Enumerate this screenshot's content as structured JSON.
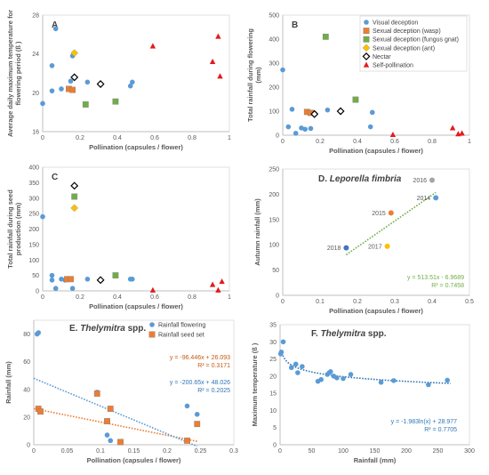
{
  "colors": {
    "visual": "#5b9bd5",
    "wasp": "#ed7d31",
    "fungus": "#70ad47",
    "ant": "#ffc000",
    "nectar": "#000000",
    "self": "#e31a1c",
    "rain_flowering": "#5b9bd5",
    "rain_seed": "#ed7d31",
    "trend_D": "#70ad47",
    "trend_F": "#2e75b6"
  },
  "series_keys": [
    "visual",
    "wasp",
    "fungus",
    "ant",
    "nectar",
    "self"
  ],
  "legend_B": [
    {
      "key": "visual",
      "label": "Visual deception",
      "marker": "circle"
    },
    {
      "key": "wasp",
      "label": "Sexual deception (wasp)",
      "marker": "square"
    },
    {
      "key": "fungus",
      "label": "Sexual deception (fungus gnat)",
      "marker": "square"
    },
    {
      "key": "ant",
      "label": "Sexual deception (ant)",
      "marker": "diamond"
    },
    {
      "key": "nectar",
      "label": "Nectar",
      "marker": "diamond-open"
    },
    {
      "key": "self",
      "label": "Self-pollination",
      "marker": "triangle"
    }
  ],
  "chart_data": [
    {
      "id": "A",
      "type": "scatter",
      "title": "A",
      "xlabel": "Pollination (capsules / flower)",
      "ylabel": "Average daily maximum temperature for flowering period (ß )",
      "xlim": [
        0,
        1
      ],
      "ylim": [
        16,
        28
      ],
      "xticks": [
        {
          "v": 0,
          "t": "0"
        },
        {
          "v": 0.2,
          "t": "0.2"
        },
        {
          "v": 0.4,
          "t": "0.4"
        },
        {
          "v": 0.6,
          "t": "0.6"
        },
        {
          "v": 0.8,
          "t": "0.8"
        },
        {
          "v": 1,
          "t": "1"
        }
      ],
      "yticks": [
        {
          "v": 16,
          "t": "16"
        },
        {
          "v": 20,
          "t": "20"
        },
        {
          "v": 24,
          "t": "24"
        },
        {
          "v": 28,
          "t": "28"
        }
      ],
      "series": [
        {
          "key": "visual",
          "points": [
            [
              0.0,
              18.9
            ],
            [
              0.05,
              22.8
            ],
            [
              0.05,
              20.2
            ],
            [
              0.07,
              26.6
            ],
            [
              0.1,
              20.4
            ],
            [
              0.15,
              21.2
            ],
            [
              0.16,
              23.8
            ],
            [
              0.24,
              21.1
            ],
            [
              0.47,
              20.7
            ],
            [
              0.48,
              21.1
            ]
          ]
        },
        {
          "key": "wasp",
          "points": [
            [
              0.14,
              20.4
            ],
            [
              0.16,
              20.3
            ]
          ]
        },
        {
          "key": "fungus",
          "points": [
            [
              0.23,
              18.8
            ],
            [
              0.39,
              19.1
            ]
          ]
        },
        {
          "key": "ant",
          "points": [
            [
              0.17,
              24.1
            ]
          ]
        },
        {
          "key": "nectar",
          "points": [
            [
              0.17,
              21.6
            ],
            [
              0.31,
              20.9
            ]
          ]
        },
        {
          "key": "self",
          "points": [
            [
              0.59,
              24.8
            ],
            [
              0.91,
              23.2
            ],
            [
              0.94,
              25.8
            ],
            [
              0.95,
              21.7
            ]
          ]
        }
      ]
    },
    {
      "id": "B",
      "type": "scatter",
      "title": "B",
      "xlabel": "Pollination (capsules / flower)",
      "ylabel": "Total rainfall during flowering (mm)",
      "xlim": [
        0,
        1
      ],
      "ylim": [
        0,
        500
      ],
      "xticks": [
        {
          "v": 0,
          "t": "0"
        },
        {
          "v": 0.2,
          "t": "0.2"
        },
        {
          "v": 0.4,
          "t": "0.4"
        },
        {
          "v": 0.6,
          "t": "0.6"
        },
        {
          "v": 0.8,
          "t": "0.8"
        },
        {
          "v": 1,
          "t": "1"
        }
      ],
      "yticks": [
        {
          "v": 0,
          "t": "0"
        },
        {
          "v": 100,
          "t": "100"
        },
        {
          "v": 200,
          "t": "200"
        },
        {
          "v": 300,
          "t": "300"
        },
        {
          "v": 400,
          "t": "400"
        },
        {
          "v": 500,
          "t": "500"
        }
      ],
      "series": [
        {
          "key": "visual",
          "points": [
            [
              0.0,
              272
            ],
            [
              0.03,
              35
            ],
            [
              0.05,
              108
            ],
            [
              0.07,
              8
            ],
            [
              0.1,
              30
            ],
            [
              0.12,
              25
            ],
            [
              0.15,
              28
            ],
            [
              0.16,
              95
            ],
            [
              0.24,
              105
            ],
            [
              0.47,
              35
            ],
            [
              0.48,
              95
            ]
          ]
        },
        {
          "key": "wasp",
          "points": [
            [
              0.13,
              97
            ],
            [
              0.15,
              93
            ]
          ]
        },
        {
          "key": "fungus",
          "points": [
            [
              0.23,
              410
            ],
            [
              0.39,
              148
            ]
          ]
        },
        {
          "key": "ant",
          "points": [
            [
              0.17,
              90
            ]
          ]
        },
        {
          "key": "nectar",
          "points": [
            [
              0.17,
              88
            ],
            [
              0.31,
              100
            ]
          ]
        },
        {
          "key": "self",
          "points": [
            [
              0.59,
              2
            ],
            [
              0.91,
              30
            ],
            [
              0.94,
              5
            ],
            [
              0.96,
              8
            ]
          ]
        }
      ]
    },
    {
      "id": "C",
      "type": "scatter",
      "title": "C",
      "xlabel": "Pollination (capsules / flower)",
      "ylabel": "Total rainfall during seed production (mm)",
      "xlim": [
        0,
        1
      ],
      "ylim": [
        0,
        400
      ],
      "xticks": [
        {
          "v": 0,
          "t": "0"
        },
        {
          "v": 0.2,
          "t": "0.2"
        },
        {
          "v": 0.4,
          "t": "0.4"
        },
        {
          "v": 0.6,
          "t": "0.6"
        },
        {
          "v": 0.8,
          "t": "0.8"
        },
        {
          "v": 1,
          "t": "1"
        }
      ],
      "yticks": [
        {
          "v": 0,
          "t": "0"
        },
        {
          "v": 50,
          "t": "50"
        },
        {
          "v": 100,
          "t": "100"
        },
        {
          "v": 150,
          "t": "150"
        },
        {
          "v": 200,
          "t": "200"
        },
        {
          "v": 250,
          "t": "250"
        },
        {
          "v": 300,
          "t": "300"
        },
        {
          "v": 350,
          "t": "350"
        },
        {
          "v": 400,
          "t": "400"
        }
      ],
      "series": [
        {
          "key": "visual",
          "points": [
            [
              0.0,
              240
            ],
            [
              0.05,
              35
            ],
            [
              0.05,
              50
            ],
            [
              0.07,
              8
            ],
            [
              0.1,
              38
            ],
            [
              0.12,
              35
            ],
            [
              0.16,
              8
            ],
            [
              0.24,
              38
            ],
            [
              0.47,
              38
            ],
            [
              0.48,
              38
            ]
          ]
        },
        {
          "key": "wasp",
          "points": [
            [
              0.13,
              38
            ],
            [
              0.15,
              38
            ]
          ]
        },
        {
          "key": "fungus",
          "points": [
            [
              0.17,
              305
            ],
            [
              0.39,
              50
            ]
          ]
        },
        {
          "key": "ant",
          "points": [
            [
              0.17,
              268
            ]
          ]
        },
        {
          "key": "nectar",
          "points": [
            [
              0.17,
              340
            ],
            [
              0.31,
              35
            ]
          ]
        },
        {
          "key": "self",
          "points": [
            [
              0.59,
              2
            ],
            [
              0.91,
              20
            ],
            [
              0.94,
              2
            ],
            [
              0.96,
              30
            ]
          ]
        }
      ]
    },
    {
      "id": "D",
      "type": "scatter",
      "title": "D. Leporella fimbria",
      "title_plain": "D.",
      "title_italic": "Leporella fimbria",
      "xlabel": "Pollination (capsules / flower)",
      "ylabel": "Autumn rainfall (mm)",
      "xlim": [
        0,
        0.5
      ],
      "ylim": [
        0,
        250
      ],
      "xticks": [
        {
          "v": 0,
          "t": "0"
        },
        {
          "v": 0.1,
          "t": "0.1"
        },
        {
          "v": 0.2,
          "t": "0.2"
        },
        {
          "v": 0.3,
          "t": "0.3"
        },
        {
          "v": 0.4,
          "t": "0.4"
        },
        {
          "v": 0.5,
          "t": "0.5"
        }
      ],
      "yticks": [
        {
          "v": 0,
          "t": "0"
        },
        {
          "v": 50,
          "t": "50"
        },
        {
          "v": 100,
          "t": "100"
        },
        {
          "v": 150,
          "t": "150"
        },
        {
          "v": 200,
          "t": "200"
        },
        {
          "v": 250,
          "t": "250"
        }
      ],
      "points": [
        {
          "x": 0.17,
          "y": 94,
          "label": "2018",
          "color": "#4472c4"
        },
        {
          "x": 0.28,
          "y": 97,
          "label": "2017",
          "color": "#ffc000"
        },
        {
          "x": 0.29,
          "y": 163,
          "label": "2015",
          "color": "#ed7d31"
        },
        {
          "x": 0.41,
          "y": 193,
          "label": "2014",
          "color": "#5b9bd5"
        },
        {
          "x": 0.4,
          "y": 228,
          "label": "2016",
          "color": "#a5a5a5"
        }
      ],
      "trend": {
        "type": "linear",
        "slope": 513.51,
        "intercept": -6.9689,
        "x_range": [
          0.17,
          0.41
        ],
        "equation": "y = 513.51x - 6.9689",
        "r2": "R² = 0.7458"
      }
    },
    {
      "id": "E",
      "type": "scatter",
      "title": "E. Thelymitra spp.",
      "title_plain": "E.",
      "title_italic": "Thelymitra",
      "title_rest": "spp.",
      "xlabel": "Pollination (capsules / flower)",
      "ylabel": "Rainfall (mm)",
      "xlim": [
        0,
        0.3
      ],
      "ylim": [
        0,
        90
      ],
      "xticks": [
        {
          "v": 0,
          "t": "0"
        },
        {
          "v": 0.05,
          "t": "0.05"
        },
        {
          "v": 0.1,
          "t": "0.1"
        },
        {
          "v": 0.15,
          "t": "0.15"
        },
        {
          "v": 0.2,
          "t": "0.2"
        },
        {
          "v": 0.25,
          "t": "0.25"
        },
        {
          "v": 0.3,
          "t": "0.3"
        }
      ],
      "yticks": [
        {
          "v": 0,
          "t": "0"
        },
        {
          "v": 20,
          "t": "20"
        },
        {
          "v": 40,
          "t": "40"
        },
        {
          "v": 60,
          "t": "60"
        },
        {
          "v": 80,
          "t": "80"
        }
      ],
      "series": [
        {
          "name": "Rainfall flowering",
          "key": "rain_flowering",
          "marker": "circle",
          "points": [
            [
              0.005,
              80
            ],
            [
              0.007,
              81
            ],
            [
              0.01,
              24
            ],
            [
              0.095,
              38
            ],
            [
              0.11,
              7
            ],
            [
              0.115,
              3
            ],
            [
              0.23,
              28
            ],
            [
              0.245,
              22
            ]
          ]
        },
        {
          "name": "Rainfall seed set",
          "key": "rain_seed",
          "marker": "square",
          "points": [
            [
              0.007,
              26
            ],
            [
              0.01,
              24
            ],
            [
              0.095,
              37
            ],
            [
              0.11,
              17
            ],
            [
              0.115,
              26
            ],
            [
              0.13,
              2
            ],
            [
              0.23,
              3
            ],
            [
              0.245,
              15
            ]
          ]
        }
      ],
      "trends": [
        {
          "key": "rain_seed",
          "slope": -96.446,
          "intercept": 26.093,
          "x_range": [
            0,
            0.245
          ],
          "equation": "y = -96.446x + 26.093",
          "r2": "R² = 0.3171"
        },
        {
          "key": "rain_flowering",
          "slope": -200.65,
          "intercept": 48.026,
          "x_range": [
            0,
            0.245
          ],
          "equation": "y = -200.65x + 48.026",
          "r2": "R² = 0.2025"
        }
      ]
    },
    {
      "id": "F",
      "type": "scatter",
      "title": "F. Thelymitra spp.",
      "title_plain": "F.",
      "title_italic": "Thelymitra",
      "title_rest": "spp.",
      "xlabel": "Rainfall (mm)",
      "ylabel": "Maximum temperature (ß )",
      "xlim": [
        0,
        300
      ],
      "ylim": [
        0,
        35
      ],
      "xticks": [
        {
          "v": 0,
          "t": "0"
        },
        {
          "v": 50,
          "t": "50"
        },
        {
          "v": 100,
          "t": "100"
        },
        {
          "v": 150,
          "t": "150"
        },
        {
          "v": 200,
          "t": "200"
        },
        {
          "v": 250,
          "t": "250"
        },
        {
          "v": 300,
          "t": "300"
        }
      ],
      "yticks": [
        {
          "v": 0,
          "t": "0"
        },
        {
          "v": 5,
          "t": "5"
        },
        {
          "v": 10,
          "t": "10"
        },
        {
          "v": 15,
          "t": "15"
        },
        {
          "v": 20,
          "t": "20"
        },
        {
          "v": 25,
          "t": "25"
        },
        {
          "v": 30,
          "t": "30"
        },
        {
          "v": 35,
          "t": "35"
        }
      ],
      "points": [
        [
          1,
          26.5
        ],
        [
          2,
          27
        ],
        [
          5,
          30
        ],
        [
          18,
          22.5
        ],
        [
          25,
          23.5
        ],
        [
          28,
          21
        ],
        [
          35,
          22.8
        ],
        [
          60,
          18.5
        ],
        [
          65,
          19
        ],
        [
          75,
          20.5
        ],
        [
          78,
          21
        ],
        [
          80,
          21.3
        ],
        [
          85,
          20
        ],
        [
          90,
          19.5
        ],
        [
          100,
          19.3
        ],
        [
          112,
          20.5
        ],
        [
          160,
          18.2
        ],
        [
          180,
          18.7
        ],
        [
          235,
          17.5
        ],
        [
          265,
          18.8
        ]
      ],
      "trend": {
        "type": "log",
        "a": -1.983,
        "b": 28.977,
        "x_range": [
          2,
          270
        ],
        "equation": "y = -1.983ln(x) + 28.977",
        "r2": "R² = 0.7705"
      }
    }
  ]
}
